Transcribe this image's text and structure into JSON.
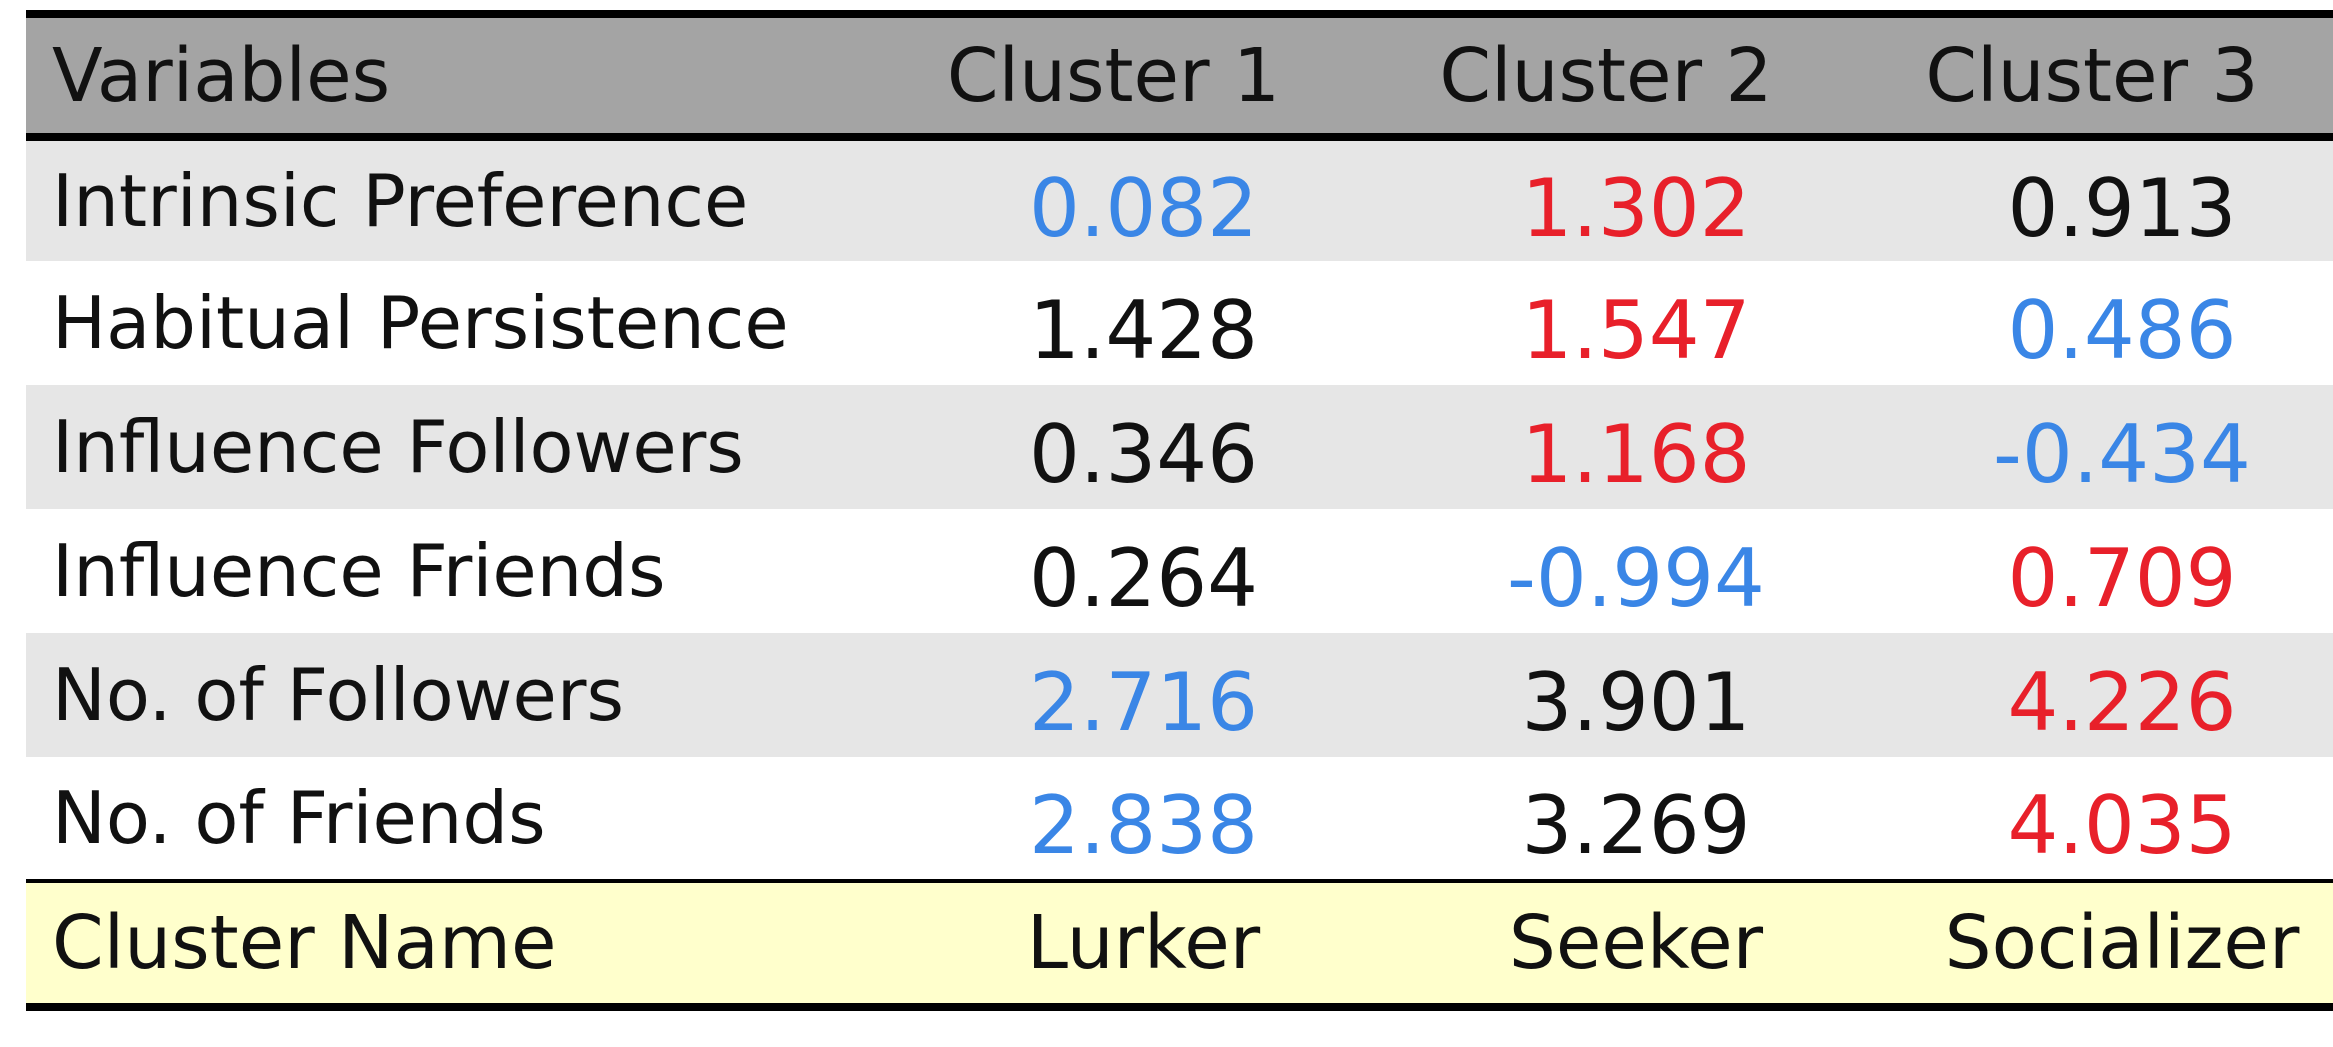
{
  "colors": {
    "high": "#e8202a",
    "low": "#3a86e6",
    "neutral": "#111111"
  },
  "chart_data": {
    "type": "table",
    "columns": [
      "Variables",
      "Cluster 1",
      "Cluster 2",
      "Cluster 3"
    ],
    "rows": [
      {
        "label": "Intrinsic Preference",
        "cells": [
          {
            "value": "0.082",
            "tone": "low"
          },
          {
            "value": "1.302",
            "tone": "high"
          },
          {
            "value": "0.913",
            "tone": "neutral"
          }
        ]
      },
      {
        "label": "Habitual Persistence",
        "cells": [
          {
            "value": "1.428",
            "tone": "neutral"
          },
          {
            "value": "1.547",
            "tone": "high"
          },
          {
            "value": "0.486",
            "tone": "low"
          }
        ]
      },
      {
        "label": "Influence Followers",
        "cells": [
          {
            "value": "0.346",
            "tone": "neutral"
          },
          {
            "value": "1.168",
            "tone": "high"
          },
          {
            "value": "-0.434",
            "tone": "low"
          }
        ]
      },
      {
        "label": "Influence Friends",
        "cells": [
          {
            "value": "0.264",
            "tone": "neutral"
          },
          {
            "value": "-0.994",
            "tone": "low"
          },
          {
            "value": "0.709",
            "tone": "high"
          }
        ]
      },
      {
        "label": "No. of Followers",
        "cells": [
          {
            "value": "2.716",
            "tone": "low"
          },
          {
            "value": "3.901",
            "tone": "neutral"
          },
          {
            "value": "4.226",
            "tone": "high"
          }
        ]
      },
      {
        "label": "No. of Friends",
        "cells": [
          {
            "value": "2.838",
            "tone": "low"
          },
          {
            "value": "3.269",
            "tone": "neutral"
          },
          {
            "value": "4.035",
            "tone": "high"
          }
        ]
      }
    ],
    "footer": {
      "label": "Cluster Name",
      "values": [
        "Lurker",
        "Seeker",
        "Socializer"
      ]
    }
  }
}
